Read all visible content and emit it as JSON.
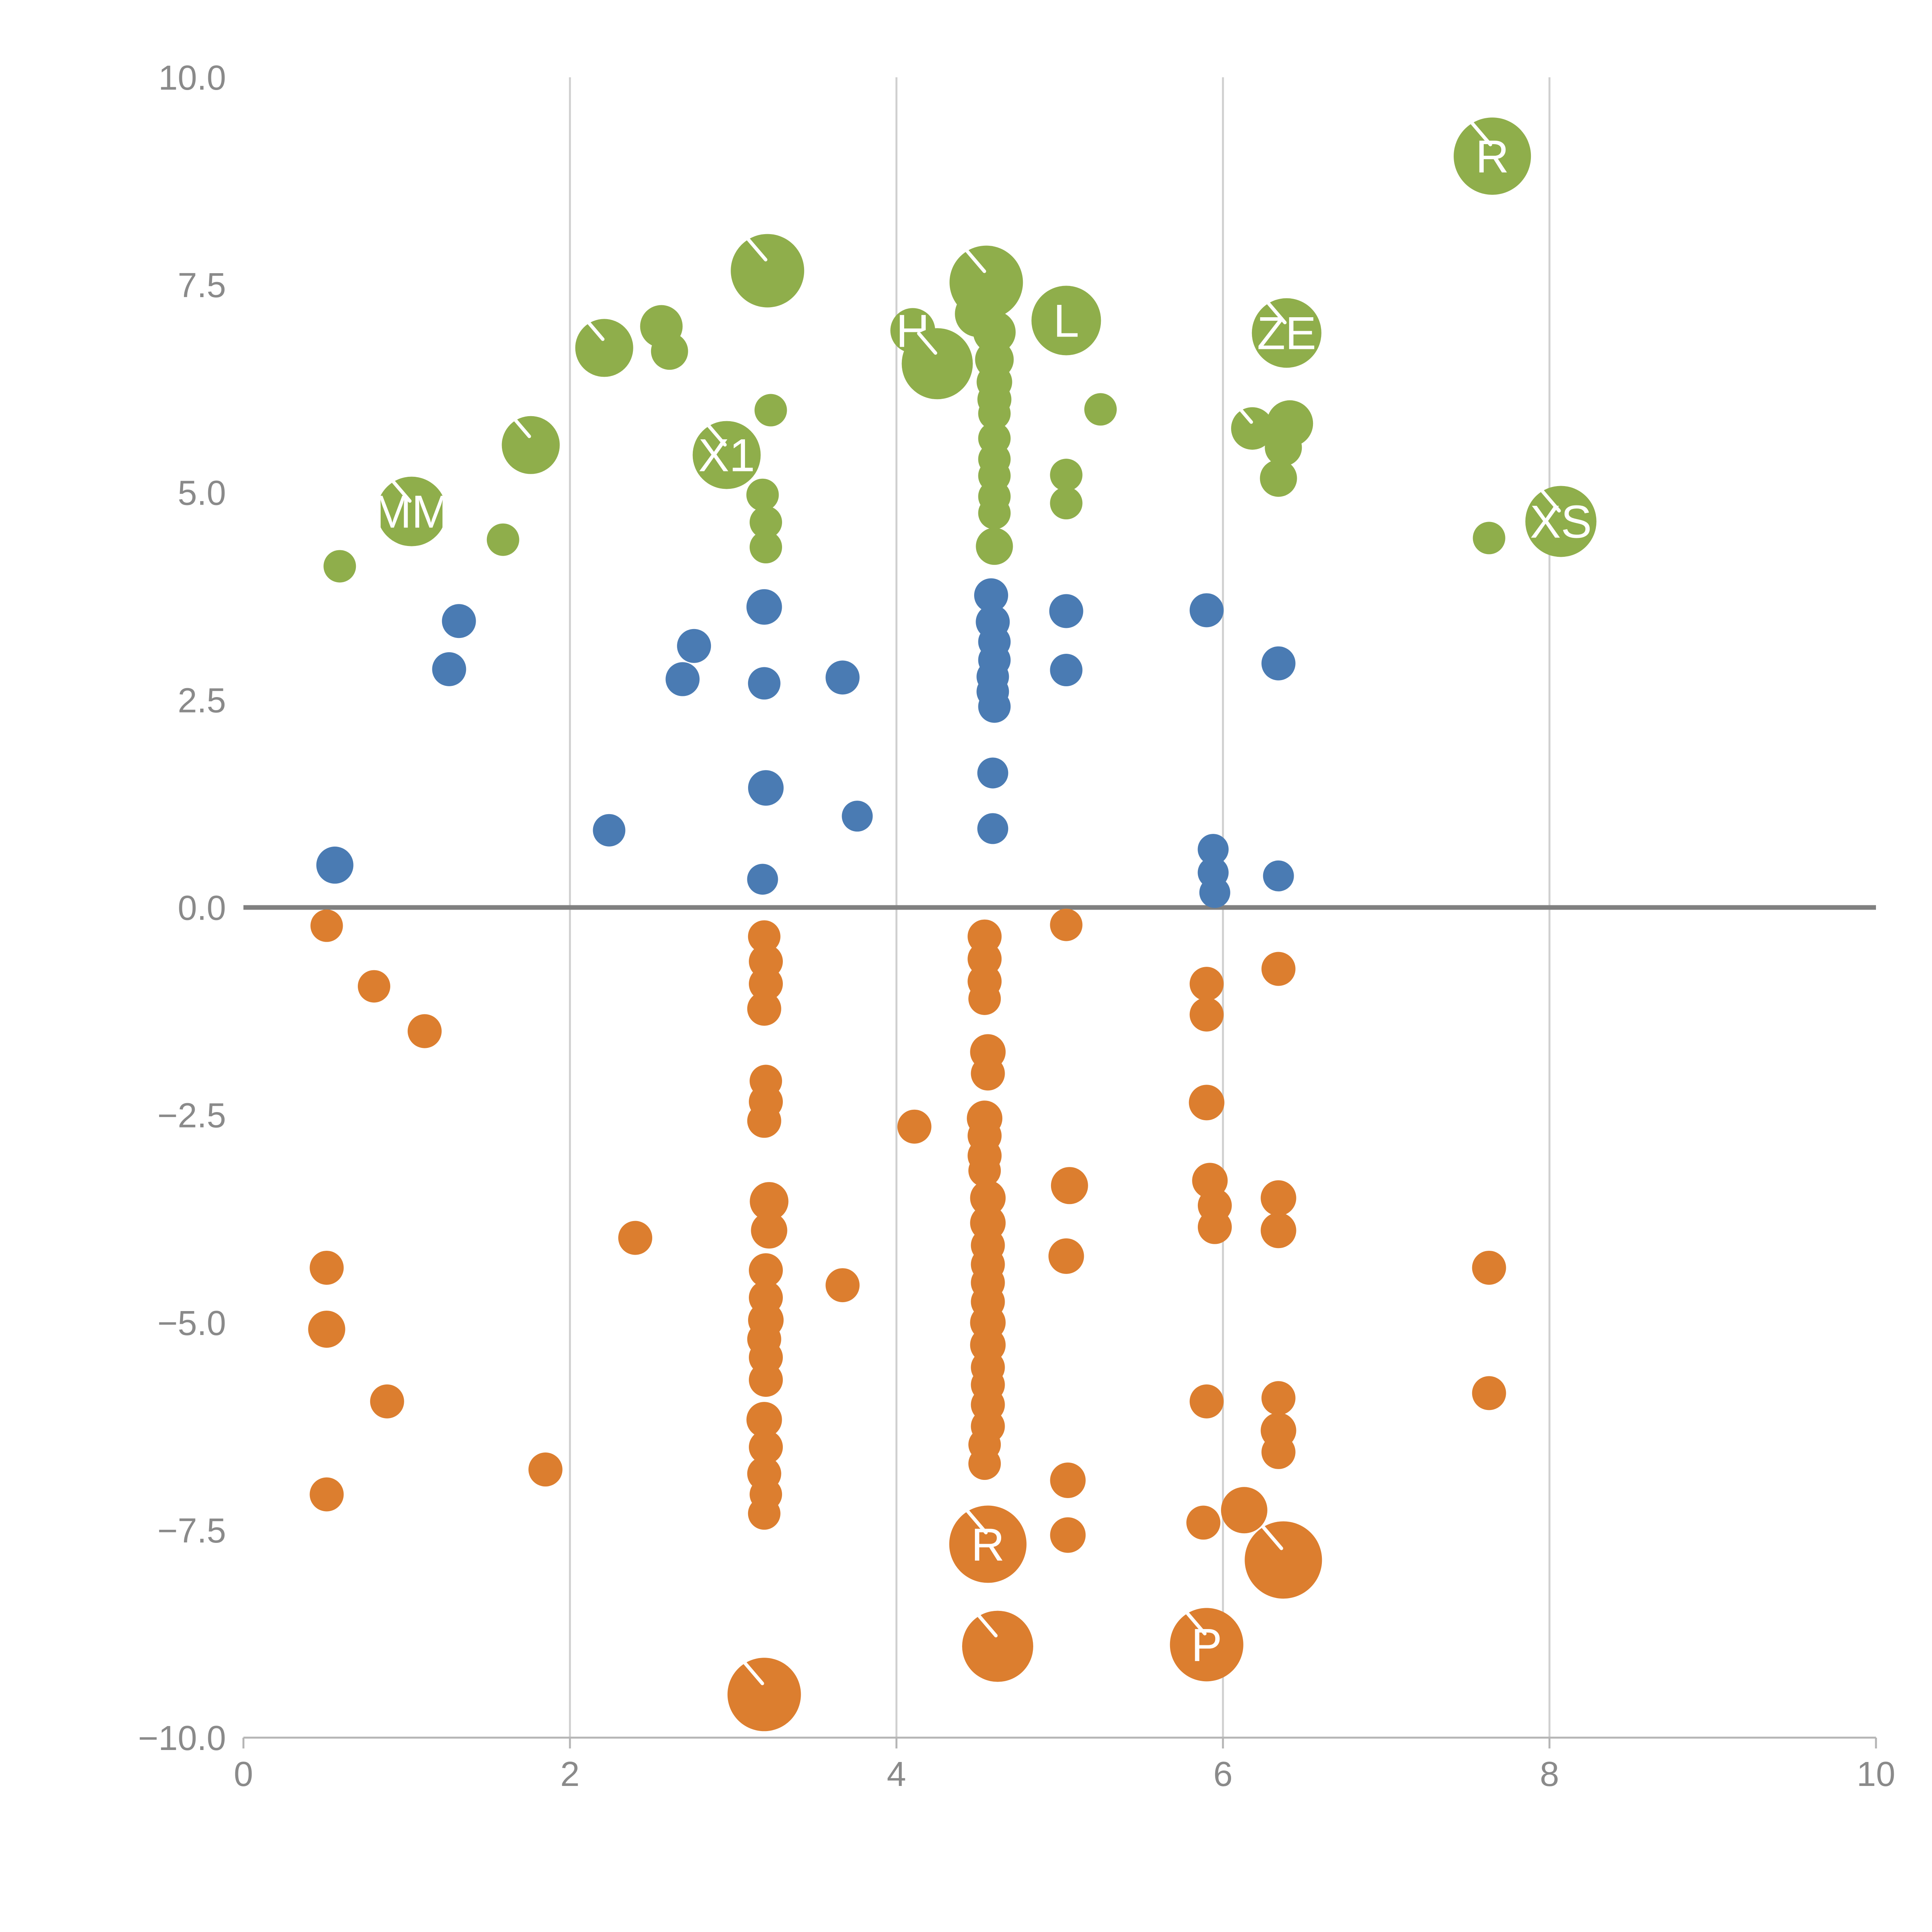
{
  "colors": {
    "green": "#8fae4b",
    "blue": "#4a7bb3",
    "orange": "#dc7e2f",
    "grid": "#cfcfcf",
    "zero_line": "#808080",
    "axis": "#b5b5b5",
    "tick_label": "#8a8a8a",
    "point_label": "#ffffff",
    "background": "#ffffff"
  },
  "chart_data": {
    "type": "scatter",
    "title": "",
    "xlabel": "",
    "ylabel": "",
    "xlim": [
      0,
      10
    ],
    "ylim": [
      -10,
      10
    ],
    "x_ticks": [
      0,
      2,
      4,
      6,
      8,
      10
    ],
    "x_tick_labels": [
      "0",
      "2",
      "4",
      "6",
      "8",
      "10"
    ],
    "y_ticks": [
      10.0,
      7.5,
      5.0,
      2.5,
      0.0,
      -2.5,
      -5.0,
      -7.5,
      -10.0
    ],
    "y_tick_labels": [
      "10.0",
      "7.5",
      "5.0",
      "2.5",
      "0.0",
      "−2.5",
      "−5.0",
      "−7.5",
      "−10.0"
    ],
    "grid": "vertical-only",
    "zero_line": true,
    "legend": "none",
    "point_format": "x, y, radius_px, label, leader_tick",
    "series": [
      {
        "name": "green",
        "color": "#8fae4b",
        "points": [
          [
            0.59,
            4.11,
            42
          ],
          [
            1.03,
            4.77,
            90,
            "MM",
            1
          ],
          [
            1.59,
            4.43,
            42
          ],
          [
            1.76,
            5.57,
            75,
            null,
            1
          ],
          [
            2.21,
            6.74,
            75,
            null,
            1
          ],
          [
            2.56,
            7.0,
            55
          ],
          [
            2.61,
            6.7,
            48
          ],
          [
            3.21,
            7.67,
            95,
            null,
            1
          ],
          [
            2.96,
            5.45,
            88,
            "X1",
            1
          ],
          [
            3.23,
            5.99,
            42
          ],
          [
            3.18,
            4.97,
            42
          ],
          [
            3.2,
            4.64,
            42
          ],
          [
            3.2,
            4.34,
            42
          ],
          [
            4.1,
            6.95,
            58,
            "H"
          ],
          [
            4.25,
            6.55,
            92,
            null,
            1
          ],
          [
            4.55,
            7.53,
            95,
            null,
            1
          ],
          [
            4.5,
            7.15,
            60
          ],
          [
            4.6,
            6.93,
            55
          ],
          [
            4.6,
            6.6,
            50
          ],
          [
            4.6,
            6.33,
            46
          ],
          [
            4.6,
            6.12,
            44
          ],
          [
            4.6,
            5.95,
            42
          ],
          [
            4.6,
            5.65,
            42
          ],
          [
            4.6,
            5.4,
            42
          ],
          [
            4.6,
            5.2,
            42
          ],
          [
            4.6,
            4.95,
            42
          ],
          [
            4.6,
            4.75,
            42
          ],
          [
            4.6,
            4.35,
            48
          ],
          [
            5.04,
            7.07,
            90,
            "L"
          ],
          [
            5.04,
            5.21,
            42
          ],
          [
            5.04,
            4.87,
            42
          ],
          [
            5.25,
            6.0,
            42
          ],
          [
            6.39,
            6.92,
            90,
            "ZE",
            1
          ],
          [
            6.18,
            5.77,
            55,
            null,
            1
          ],
          [
            6.41,
            5.83,
            60
          ],
          [
            6.37,
            5.54,
            48
          ],
          [
            6.34,
            5.17,
            48
          ],
          [
            7.63,
            4.45,
            42
          ],
          [
            7.65,
            9.05,
            100,
            "R",
            1
          ],
          [
            8.07,
            4.65,
            92,
            "XS",
            1
          ]
        ]
      },
      {
        "name": "blue",
        "color": "#4a7bb3",
        "points": [
          [
            0.56,
            0.51,
            48
          ],
          [
            1.32,
            3.45,
            44
          ],
          [
            1.26,
            2.87,
            44
          ],
          [
            2.24,
            0.93,
            42
          ],
          [
            2.76,
            3.15,
            44
          ],
          [
            2.69,
            2.75,
            44
          ],
          [
            3.19,
            3.62,
            46
          ],
          [
            3.19,
            2.7,
            42
          ],
          [
            3.2,
            1.44,
            46
          ],
          [
            3.18,
            0.34,
            40
          ],
          [
            3.67,
            2.77,
            44
          ],
          [
            3.76,
            1.1,
            40
          ],
          [
            4.58,
            3.76,
            44
          ],
          [
            4.59,
            3.44,
            44
          ],
          [
            4.6,
            3.2,
            42
          ],
          [
            4.6,
            2.98,
            42
          ],
          [
            4.59,
            2.78,
            42
          ],
          [
            4.59,
            2.6,
            42
          ],
          [
            4.6,
            2.42,
            42
          ],
          [
            4.59,
            1.62,
            40
          ],
          [
            4.59,
            0.95,
            40
          ],
          [
            5.04,
            3.57,
            44
          ],
          [
            5.04,
            2.86,
            42
          ],
          [
            5.9,
            3.58,
            44
          ],
          [
            5.94,
            0.7,
            40
          ],
          [
            5.94,
            0.42,
            40
          ],
          [
            5.95,
            0.18,
            40
          ],
          [
            6.34,
            2.94,
            44
          ],
          [
            6.34,
            0.38,
            40
          ]
        ]
      },
      {
        "name": "orange",
        "color": "#dc7e2f",
        "points": [
          [
            0.51,
            -0.22,
            42
          ],
          [
            0.8,
            -0.95,
            42
          ],
          [
            1.11,
            -1.49,
            44
          ],
          [
            0.51,
            -4.34,
            44
          ],
          [
            0.51,
            -5.08,
            48
          ],
          [
            0.88,
            -5.95,
            44
          ],
          [
            0.51,
            -7.07,
            44
          ],
          [
            1.85,
            -6.77,
            44
          ],
          [
            2.4,
            -3.98,
            44
          ],
          [
            3.19,
            -0.35,
            42
          ],
          [
            3.2,
            -0.65,
            44
          ],
          [
            3.2,
            -0.92,
            44
          ],
          [
            3.19,
            -1.22,
            44
          ],
          [
            3.2,
            -2.09,
            42
          ],
          [
            3.2,
            -2.34,
            44
          ],
          [
            3.19,
            -2.57,
            44
          ],
          [
            3.22,
            -3.54,
            50
          ],
          [
            3.22,
            -3.89,
            47
          ],
          [
            3.2,
            -4.37,
            44
          ],
          [
            3.2,
            -4.7,
            44
          ],
          [
            3.2,
            -4.97,
            46
          ],
          [
            3.19,
            -5.2,
            44
          ],
          [
            3.2,
            -5.42,
            44
          ],
          [
            3.2,
            -5.69,
            44
          ],
          [
            3.19,
            -6.17,
            46
          ],
          [
            3.2,
            -6.5,
            44
          ],
          [
            3.19,
            -6.82,
            44
          ],
          [
            3.2,
            -7.07,
            42
          ],
          [
            3.19,
            -7.3,
            42
          ],
          [
            3.19,
            -9.48,
            95,
            null,
            1
          ],
          [
            3.67,
            -4.55,
            44
          ],
          [
            4.11,
            -2.64,
            44
          ],
          [
            4.54,
            -0.35,
            44
          ],
          [
            4.54,
            -0.62,
            44
          ],
          [
            4.54,
            -0.89,
            44
          ],
          [
            4.54,
            -1.1,
            42
          ],
          [
            4.56,
            -1.74,
            46
          ],
          [
            4.56,
            -2.0,
            44
          ],
          [
            4.54,
            -2.54,
            46
          ],
          [
            4.54,
            -2.75,
            44
          ],
          [
            4.54,
            -2.99,
            44
          ],
          [
            4.54,
            -3.17,
            42
          ],
          [
            4.56,
            -3.5,
            46
          ],
          [
            4.56,
            -3.8,
            46
          ],
          [
            4.56,
            -4.07,
            44
          ],
          [
            4.56,
            -4.3,
            44
          ],
          [
            4.56,
            -4.52,
            44
          ],
          [
            4.56,
            -4.75,
            44
          ],
          [
            4.56,
            -5.0,
            46
          ],
          [
            4.56,
            -5.27,
            46
          ],
          [
            4.56,
            -5.54,
            44
          ],
          [
            4.56,
            -5.75,
            44
          ],
          [
            4.56,
            -5.99,
            44
          ],
          [
            4.56,
            -6.25,
            44
          ],
          [
            4.54,
            -6.47,
            42
          ],
          [
            4.54,
            -6.7,
            42
          ],
          [
            4.56,
            -7.67,
            100,
            "R",
            1
          ],
          [
            4.62,
            -8.9,
            92,
            null,
            1
          ],
          [
            5.04,
            -0.21,
            42
          ],
          [
            5.06,
            -3.35,
            48
          ],
          [
            5.04,
            -4.2,
            46
          ],
          [
            5.05,
            -6.9,
            46
          ],
          [
            5.05,
            -7.56,
            46
          ],
          [
            5.9,
            -0.92,
            44
          ],
          [
            5.9,
            -1.29,
            44
          ],
          [
            5.9,
            -2.35,
            46
          ],
          [
            5.92,
            -3.29,
            46
          ],
          [
            5.95,
            -3.59,
            44
          ],
          [
            5.95,
            -3.85,
            44
          ],
          [
            5.9,
            -5.95,
            44
          ],
          [
            5.88,
            -7.41,
            44
          ],
          [
            6.13,
            -7.26,
            60
          ],
          [
            5.9,
            -8.88,
            95,
            "P",
            1
          ],
          [
            6.34,
            -0.74,
            44
          ],
          [
            6.34,
            -3.5,
            46
          ],
          [
            6.34,
            -3.89,
            46
          ],
          [
            6.34,
            -5.91,
            44
          ],
          [
            6.34,
            -6.3,
            46
          ],
          [
            6.34,
            -6.56,
            44
          ],
          [
            6.37,
            -7.86,
            100,
            null,
            1
          ],
          [
            7.63,
            -4.34,
            44
          ],
          [
            7.63,
            -5.85,
            44
          ]
        ]
      }
    ]
  }
}
